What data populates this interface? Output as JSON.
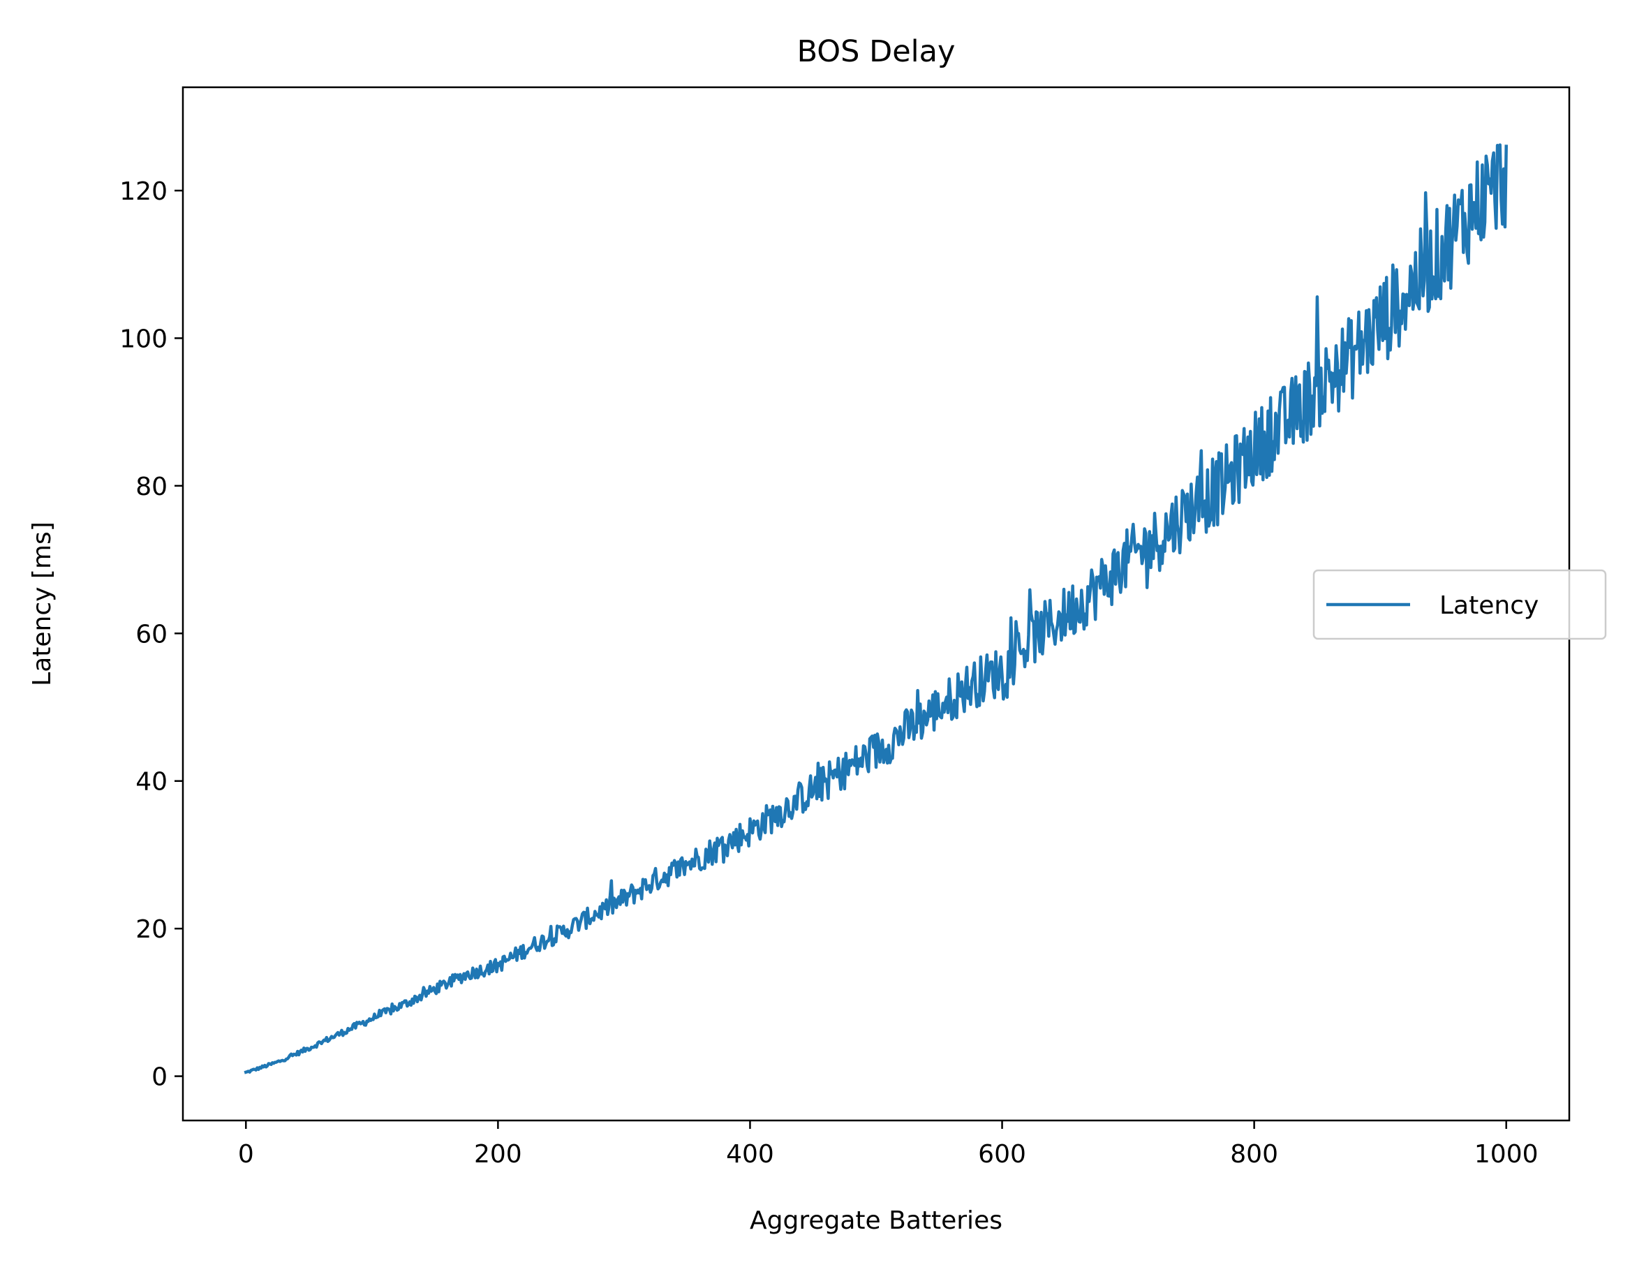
{
  "chart_data": {
    "type": "line",
    "title": "BOS Delay",
    "xlabel": "Aggregate Batteries",
    "ylabel": "Latency [ms]",
    "xlim": [
      -50,
      1050
    ],
    "ylim": [
      -6,
      134
    ],
    "xticks": [
      0,
      200,
      400,
      600,
      800,
      1000
    ],
    "yticks": [
      0,
      20,
      40,
      60,
      80,
      100,
      120
    ],
    "xtick_labels": [
      "0",
      "200",
      "400",
      "600",
      "800",
      "1000"
    ],
    "ytick_labels": [
      "0",
      "20",
      "40",
      "60",
      "80",
      "100",
      "120"
    ],
    "grid": false,
    "legend": {
      "position": "center-right",
      "entries": [
        "Latency"
      ]
    },
    "series": [
      {
        "name": "Latency",
        "color": "#1f77b4",
        "trend": "approximately Latency = 0.03*x + 0.00009*x^2, rising from about 0.5 ms at x=0 to about 122 ms at x=1000, with noise growing with x",
        "x": [
          0,
          25,
          50,
          75,
          100,
          125,
          150,
          175,
          200,
          225,
          250,
          275,
          300,
          325,
          350,
          375,
          400,
          425,
          450,
          475,
          500,
          525,
          550,
          575,
          600,
          625,
          650,
          675,
          700,
          725,
          750,
          775,
          800,
          825,
          850,
          875,
          900,
          925,
          950,
          975,
          1000
        ],
        "y": [
          0.5,
          1.9,
          3.8,
          5.8,
          7.8,
          9.7,
          11.8,
          13.8,
          15.0,
          17.5,
          19.4,
          21.8,
          24.0,
          26.6,
          28.7,
          31.0,
          33.2,
          36.0,
          38.8,
          41.5,
          44.0,
          47.0,
          50.0,
          53.0,
          55.0,
          59.5,
          62.5,
          66.0,
          70.0,
          73.0,
          77.0,
          80.0,
          85.0,
          88.5,
          93.0,
          97.0,
          102.0,
          107.0,
          112.0,
          118.0,
          122.0
        ]
      }
    ]
  }
}
